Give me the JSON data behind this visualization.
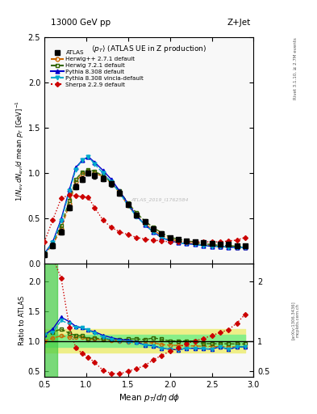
{
  "title_top": "13000 GeV pp",
  "title_right": "Z+Jet",
  "plot_title": "<pT> (ATLAS UE in Z production)",
  "xlabel": "Mean $p_T/d\\eta\\,d\\phi$",
  "ylabel_main": "$1/N_{ev}\\,dN_{ev}/d$ mean $p_T$ [GeV]$^{-1}$",
  "ylabel_ratio": "Ratio to ATLAS",
  "rivet_label": "Rivet 3.1.10, ≥ 2.7M events",
  "arxiv_label": "[arXiv:1306.3436]",
  "mcplots_label": "mcplots.cern.ch",
  "watermark": "ATLAS_2019_I1762584",
  "atlas_x": [
    0.5,
    0.6,
    0.7,
    0.8,
    0.875,
    0.95,
    1.025,
    1.1,
    1.2,
    1.3,
    1.4,
    1.5,
    1.6,
    1.7,
    1.8,
    1.9,
    2.0,
    2.1,
    2.2,
    2.3,
    2.4,
    2.5,
    2.6,
    2.7,
    2.8,
    2.9
  ],
  "atlas_y": [
    0.1,
    0.2,
    0.35,
    0.62,
    0.85,
    0.93,
    1.0,
    0.97,
    0.94,
    0.88,
    0.78,
    0.65,
    0.54,
    0.46,
    0.38,
    0.33,
    0.29,
    0.27,
    0.25,
    0.24,
    0.23,
    0.22,
    0.21,
    0.21,
    0.2,
    0.2
  ],
  "atlas_err": [
    0.03,
    0.03,
    0.03,
    0.03,
    0.03,
    0.03,
    0.03,
    0.03,
    0.03,
    0.03,
    0.03,
    0.02,
    0.02,
    0.02,
    0.02,
    0.02,
    0.01,
    0.01,
    0.01,
    0.01,
    0.01,
    0.01,
    0.01,
    0.01,
    0.01,
    0.01
  ],
  "herwigpp_x": [
    0.5,
    0.6,
    0.7,
    0.8,
    0.875,
    0.95,
    1.025,
    1.1,
    1.2,
    1.3,
    1.4,
    1.5,
    1.6,
    1.7,
    1.8,
    1.9,
    2.0,
    2.1,
    2.2,
    2.3,
    2.4,
    2.5,
    2.6,
    2.7,
    2.8,
    2.9
  ],
  "herwigpp_y": [
    0.1,
    0.21,
    0.38,
    0.66,
    0.9,
    0.99,
    1.02,
    1.0,
    0.96,
    0.89,
    0.78,
    0.64,
    0.53,
    0.44,
    0.37,
    0.31,
    0.27,
    0.25,
    0.23,
    0.22,
    0.21,
    0.2,
    0.19,
    0.19,
    0.18,
    0.18
  ],
  "herwig721_x": [
    0.5,
    0.6,
    0.7,
    0.8,
    0.875,
    0.95,
    1.025,
    1.1,
    1.2,
    1.3,
    1.4,
    1.5,
    1.6,
    1.7,
    1.8,
    1.9,
    2.0,
    2.1,
    2.2,
    2.3,
    2.4,
    2.5,
    2.6,
    2.7,
    2.8,
    2.9
  ],
  "herwig721_y": [
    0.11,
    0.23,
    0.42,
    0.7,
    0.93,
    1.01,
    1.04,
    1.02,
    0.97,
    0.9,
    0.8,
    0.67,
    0.56,
    0.47,
    0.4,
    0.34,
    0.29,
    0.27,
    0.25,
    0.24,
    0.22,
    0.21,
    0.2,
    0.2,
    0.19,
    0.19
  ],
  "pythia8308_x": [
    0.5,
    0.6,
    0.7,
    0.8,
    0.875,
    0.95,
    1.025,
    1.1,
    1.2,
    1.3,
    1.4,
    1.5,
    1.6,
    1.7,
    1.8,
    1.9,
    2.0,
    2.1,
    2.2,
    2.3,
    2.4,
    2.5,
    2.6,
    2.7,
    2.8,
    2.9
  ],
  "pythia8308_y": [
    0.11,
    0.24,
    0.49,
    0.82,
    1.06,
    1.14,
    1.18,
    1.12,
    1.03,
    0.93,
    0.8,
    0.66,
    0.53,
    0.43,
    0.35,
    0.29,
    0.25,
    0.23,
    0.22,
    0.21,
    0.2,
    0.19,
    0.19,
    0.18,
    0.18,
    0.18
  ],
  "vincia_x": [
    0.5,
    0.6,
    0.7,
    0.8,
    0.875,
    0.95,
    1.025,
    1.1,
    1.2,
    1.3,
    1.4,
    1.5,
    1.6,
    1.7,
    1.8,
    1.9,
    2.0,
    2.1,
    2.2,
    2.3,
    2.4,
    2.5,
    2.6,
    2.7,
    2.8,
    2.9
  ],
  "vincia_y": [
    0.11,
    0.23,
    0.47,
    0.8,
    1.04,
    1.14,
    1.18,
    1.1,
    1.0,
    0.9,
    0.78,
    0.64,
    0.52,
    0.43,
    0.35,
    0.29,
    0.25,
    0.23,
    0.22,
    0.21,
    0.2,
    0.19,
    0.19,
    0.18,
    0.18,
    0.18
  ],
  "sherpa_x": [
    0.5,
    0.6,
    0.7,
    0.8,
    0.875,
    0.95,
    1.025,
    1.1,
    1.2,
    1.3,
    1.4,
    1.5,
    1.6,
    1.7,
    1.8,
    1.9,
    2.0,
    2.1,
    2.2,
    2.3,
    2.4,
    2.5,
    2.6,
    2.7,
    2.8,
    2.9
  ],
  "sherpa_y": [
    0.24,
    0.48,
    0.72,
    0.76,
    0.75,
    0.74,
    0.73,
    0.62,
    0.48,
    0.4,
    0.35,
    0.32,
    0.29,
    0.27,
    0.26,
    0.25,
    0.24,
    0.24,
    0.24,
    0.24,
    0.24,
    0.24,
    0.24,
    0.25,
    0.26,
    0.29
  ],
  "xlim": [
    0.5,
    3.0
  ],
  "ylim_main": [
    0.0,
    2.5
  ],
  "ylim_ratio": [
    0.4,
    2.3
  ],
  "color_atlas": "#000000",
  "color_herwigpp": "#cc6600",
  "color_herwig721": "#336600",
  "color_pythia": "#0000cc",
  "color_vincia": "#00aacc",
  "color_sherpa": "#cc0000",
  "band_green_lo": 0.9,
  "band_green_hi": 1.1,
  "band_yellow_lo": 0.8,
  "band_yellow_hi": 1.2,
  "first_bin_end": 0.65,
  "bg_color": "#f8f8f8"
}
